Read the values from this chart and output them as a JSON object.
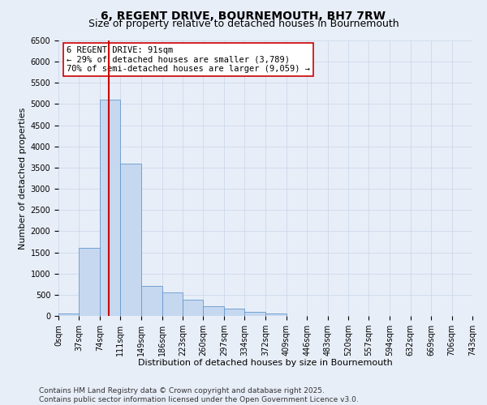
{
  "title_line1": "6, REGENT DRIVE, BOURNEMOUTH, BH7 7RW",
  "title_line2": "Size of property relative to detached houses in Bournemouth",
  "xlabel": "Distribution of detached houses by size in Bournemouth",
  "ylabel": "Number of detached properties",
  "bar_color": "#c5d8f0",
  "bar_edge_color": "#6699cc",
  "grid_color": "#ccd9ea",
  "background_color": "#e8eef8",
  "vline_color": "#cc0000",
  "vline_value": 91,
  "annotation_text": "6 REGENT DRIVE: 91sqm\n← 29% of detached houses are smaller (3,789)\n70% of semi-detached houses are larger (9,059) →",
  "annotation_box_color": "#ffffff",
  "annotation_box_edge": "#cc0000",
  "bin_edges": [
    0,
    37,
    74,
    111,
    149,
    186,
    223,
    260,
    297,
    334,
    372,
    409,
    446,
    483,
    520,
    557,
    594,
    632,
    669,
    706,
    743
  ],
  "bin_counts": [
    50,
    1600,
    5100,
    3600,
    700,
    550,
    380,
    230,
    175,
    100,
    50,
    0,
    0,
    0,
    0,
    0,
    0,
    0,
    0,
    0
  ],
  "ylim": [
    0,
    6500
  ],
  "yticks": [
    0,
    500,
    1000,
    1500,
    2000,
    2500,
    3000,
    3500,
    4000,
    4500,
    5000,
    5500,
    6000,
    6500
  ],
  "footer_text": "Contains HM Land Registry data © Crown copyright and database right 2025.\nContains public sector information licensed under the Open Government Licence v3.0.",
  "title_fontsize": 10,
  "subtitle_fontsize": 9,
  "axis_label_fontsize": 8,
  "tick_fontsize": 7,
  "footer_fontsize": 6.5
}
